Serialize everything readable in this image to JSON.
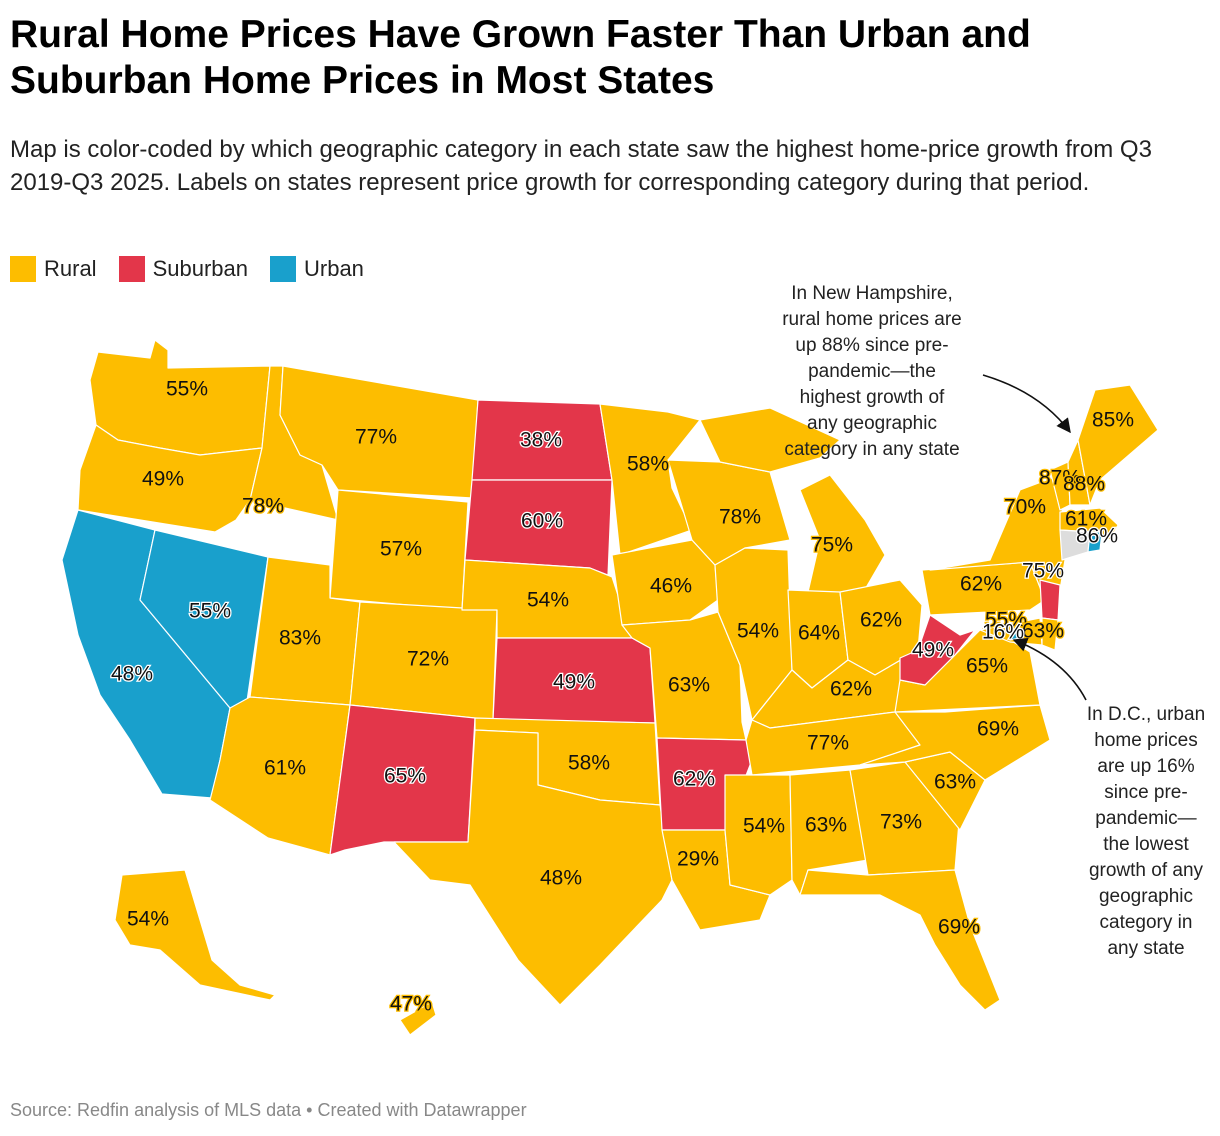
{
  "title": "Rural Home Prices Have Grown Faster Than Urban and Suburban Home Prices in Most States",
  "subtitle": "Map is color-coded by which geographic category in each state saw the highest home-price growth from Q3 2019-Q3 2025. Labels on states represent price growth for corresponding category during that period.",
  "legend": [
    {
      "label": "Rural",
      "category": "rural"
    },
    {
      "label": "Suburban",
      "category": "suburban"
    },
    {
      "label": "Urban",
      "category": "urban"
    }
  ],
  "colors": {
    "rural": "#fdbd00",
    "suburban": "#e3364a",
    "urban": "#19a0cc",
    "nodata": "#dddddd",
    "halo_light": "#ffffff",
    "halo_dark": "#000000"
  },
  "map_data": {
    "type": "choropleth",
    "region": "United States",
    "states": [
      {
        "code": "WA",
        "category": "rural",
        "value": "55%"
      },
      {
        "code": "OR",
        "category": "rural",
        "value": "49%"
      },
      {
        "code": "CA",
        "category": "urban",
        "value": "48%"
      },
      {
        "code": "NV",
        "category": "urban",
        "value": "55%"
      },
      {
        "code": "ID",
        "category": "rural",
        "value": "78%"
      },
      {
        "code": "MT",
        "category": "rural",
        "value": "77%"
      },
      {
        "code": "WY",
        "category": "rural",
        "value": "57%"
      },
      {
        "code": "UT",
        "category": "rural",
        "value": "83%"
      },
      {
        "code": "AZ",
        "category": "rural",
        "value": "61%"
      },
      {
        "code": "CO",
        "category": "rural",
        "value": "72%"
      },
      {
        "code": "NM",
        "category": "suburban",
        "value": "65%"
      },
      {
        "code": "ND",
        "category": "suburban",
        "value": "38%"
      },
      {
        "code": "SD",
        "category": "suburban",
        "value": "60%"
      },
      {
        "code": "NE",
        "category": "rural",
        "value": "54%"
      },
      {
        "code": "KS",
        "category": "suburban",
        "value": "49%"
      },
      {
        "code": "OK",
        "category": "rural",
        "value": "58%"
      },
      {
        "code": "TX",
        "category": "rural",
        "value": "48%"
      },
      {
        "code": "MN",
        "category": "rural",
        "value": "58%"
      },
      {
        "code": "IA",
        "category": "rural",
        "value": "46%"
      },
      {
        "code": "MO",
        "category": "rural",
        "value": "63%"
      },
      {
        "code": "AR",
        "category": "suburban",
        "value": "62%"
      },
      {
        "code": "LA",
        "category": "rural",
        "value": "29%"
      },
      {
        "code": "WI",
        "category": "rural",
        "value": "78%"
      },
      {
        "code": "IL",
        "category": "rural",
        "value": "54%"
      },
      {
        "code": "MI",
        "category": "rural",
        "value": "75%"
      },
      {
        "code": "IN",
        "category": "rural",
        "value": "64%"
      },
      {
        "code": "OH",
        "category": "rural",
        "value": "62%"
      },
      {
        "code": "KY",
        "category": "rural",
        "value": "62%"
      },
      {
        "code": "TN",
        "category": "rural",
        "value": "77%"
      },
      {
        "code": "MS",
        "category": "rural",
        "value": "54%"
      },
      {
        "code": "AL",
        "category": "rural",
        "value": "63%"
      },
      {
        "code": "GA",
        "category": "rural",
        "value": "73%"
      },
      {
        "code": "FL",
        "category": "rural",
        "value": "69%"
      },
      {
        "code": "SC",
        "category": "rural",
        "value": "63%"
      },
      {
        "code": "NC",
        "category": "rural",
        "value": "69%"
      },
      {
        "code": "VA",
        "category": "rural",
        "value": "65%"
      },
      {
        "code": "WV",
        "category": "suburban",
        "value": "49%"
      },
      {
        "code": "PA",
        "category": "rural",
        "value": "62%"
      },
      {
        "code": "NY",
        "category": "rural",
        "value": "70%"
      },
      {
        "code": "VT",
        "category": "rural",
        "value": "87%"
      },
      {
        "code": "NH",
        "category": "rural",
        "value": "88%"
      },
      {
        "code": "ME",
        "category": "rural",
        "value": "85%"
      },
      {
        "code": "MA",
        "category": "rural",
        "value": "61%"
      },
      {
        "code": "CT",
        "category": "nodata",
        "value": ""
      },
      {
        "code": "RI",
        "category": "urban",
        "value": "86%"
      },
      {
        "code": "NJ",
        "category": "suburban",
        "value": "75%"
      },
      {
        "code": "MD",
        "category": "rural",
        "value": "55%"
      },
      {
        "code": "DE",
        "category": "rural",
        "value": "63%"
      },
      {
        "code": "DC",
        "category": "urban",
        "value": "16%"
      },
      {
        "code": "AK",
        "category": "rural",
        "value": "54%"
      },
      {
        "code": "HI",
        "category": "rural",
        "value": "47%"
      }
    ]
  },
  "annotations": {
    "new_hampshire": [
      "In New Hampshire,",
      "rural home prices are",
      "up 88% since pre-",
      "pandemic—the",
      "highest growth of",
      "any geographic",
      "category in any state"
    ],
    "dc": [
      "In D.C., urban",
      "home prices",
      "are up 16%",
      "since pre-",
      "pandemic—",
      "the lowest",
      "growth of any",
      "geographic",
      "category in",
      "any state"
    ]
  },
  "footer": "Source: Redfin analysis of MLS data • Created with Datawrapper"
}
